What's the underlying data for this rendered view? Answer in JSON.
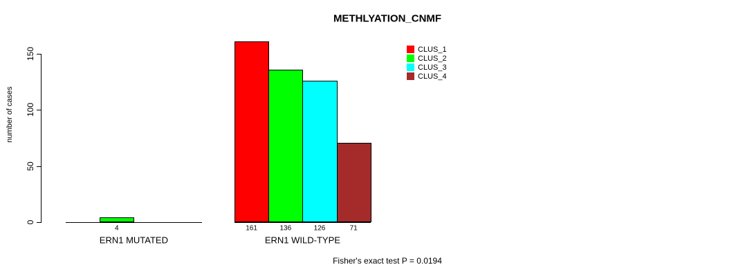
{
  "chart_data": {
    "type": "bar",
    "title": "METHLYATION_CNMF",
    "ylabel": "number of cases",
    "xlabel": "",
    "categories": [
      "ERN1 MUTATED",
      "ERN1 WILD-TYPE"
    ],
    "series": [
      {
        "name": "CLUS_1",
        "color": "#ff0000",
        "values": [
          0,
          161
        ]
      },
      {
        "name": "CLUS_2",
        "color": "#00ff00",
        "values": [
          4,
          136
        ]
      },
      {
        "name": "CLUS_3",
        "color": "#00ffff",
        "values": [
          0,
          126
        ]
      },
      {
        "name": "CLUS_4",
        "color": "#a52a2a",
        "values": [
          0,
          71
        ]
      }
    ],
    "yticks": [
      0,
      50,
      100,
      150
    ],
    "ylim": [
      0,
      163
    ],
    "grid": false,
    "legend_position": "top-right",
    "annotation": "Fisher's exact test P = 0.0194",
    "axis_color": "#000000",
    "text_color": "#000000",
    "background_color": "#ffffff"
  }
}
